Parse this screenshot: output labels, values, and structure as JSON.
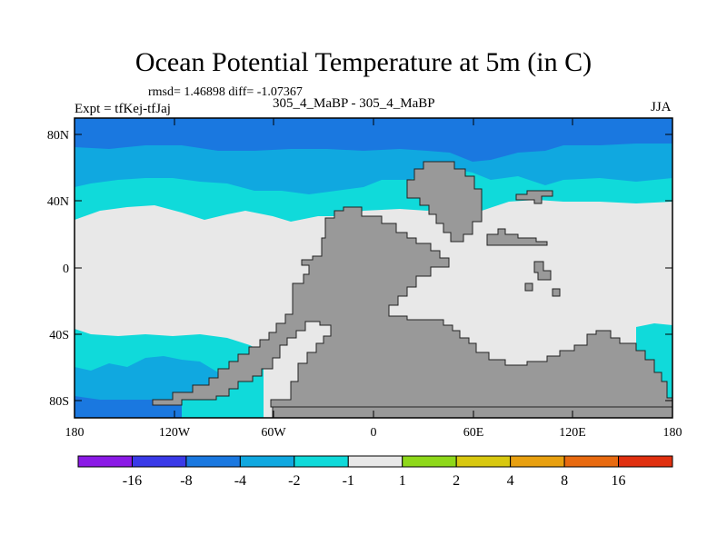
{
  "title": "Ocean Potential Temperature at 5m (in C)",
  "stats": "rmsd= 1.46898 diff= -1.07367",
  "expt": "Expt = tfKej-tfJaj",
  "subtitle": "305_4_MaBP - 305_4_MaBP",
  "season": "JJA",
  "lon_ticks": [
    "180",
    "120W",
    "60W",
    "0",
    "60E",
    "120E",
    "180"
  ],
  "lat_ticks": [
    "80N",
    "40N",
    "0",
    "40S",
    "80S"
  ],
  "colorbar": {
    "labels": [
      "-16",
      "-8",
      "-4",
      "-2",
      "-1",
      "1",
      "2",
      "4",
      "8",
      "16"
    ],
    "colors": [
      "#8b1ae6",
      "#3a3ae8",
      "#1a78e0",
      "#10a8e0",
      "#10dada",
      "#e8e8e8",
      "#8ed81a",
      "#d8c810",
      "#e8a010",
      "#e86a10",
      "#e03010"
    ]
  },
  "map_colors": {
    "land": "#999999",
    "ocean_neutral": "#e8e8e8",
    "ocean_minus1_minus2": "#10dada",
    "ocean_minus2_minus4": "#10a8e0",
    "ocean_minus4_minus8": "#1a78e0"
  }
}
